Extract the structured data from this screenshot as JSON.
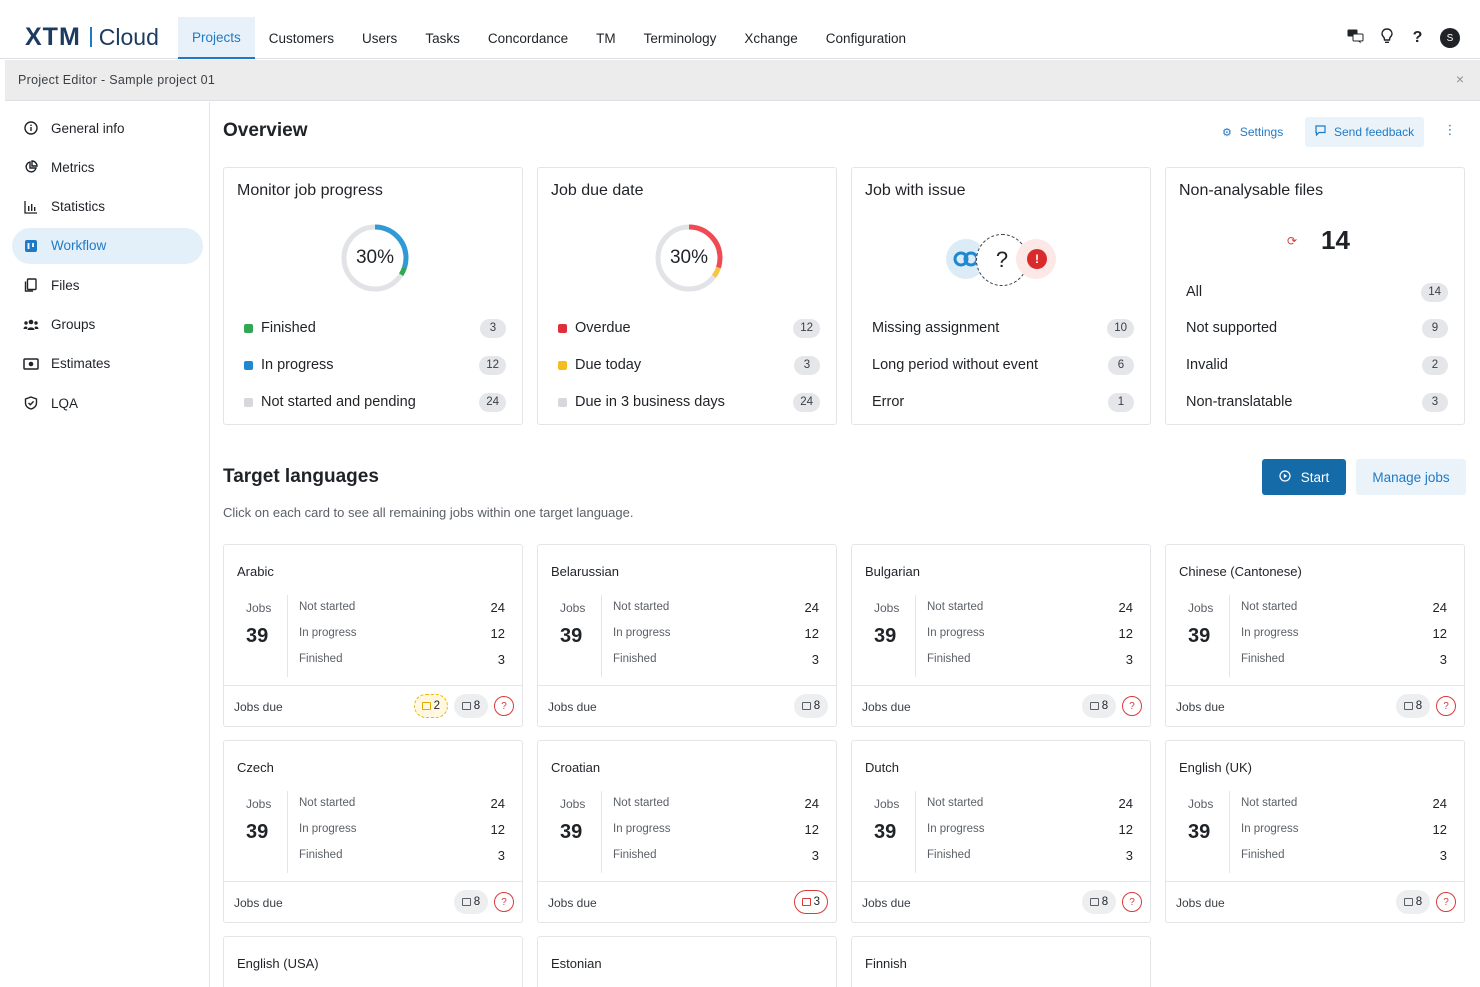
{
  "app": {
    "logo_brand": "XTM",
    "logo_product": "Cloud"
  },
  "nav": {
    "items": [
      {
        "label": "Projects",
        "active": true
      },
      {
        "label": "Customers",
        "active": false
      },
      {
        "label": "Users",
        "active": false
      },
      {
        "label": "Tasks",
        "active": false
      },
      {
        "label": "Concordance",
        "active": false
      },
      {
        "label": "TM",
        "active": false
      },
      {
        "label": "Terminology",
        "active": false
      },
      {
        "label": "Xchange",
        "active": false
      },
      {
        "label": "Configuration",
        "active": false
      }
    ],
    "icons": [
      "chat-translate-icon",
      "lightbulb-icon",
      "help-icon"
    ],
    "avatar_initial": "S"
  },
  "subheader": {
    "title": "Project Editor - Sample project 01",
    "close": "×"
  },
  "sidebar": {
    "items": [
      {
        "label": "General info",
        "icon": "info-icon",
        "active": false
      },
      {
        "label": "Metrics",
        "icon": "pie-chart-icon",
        "active": false
      },
      {
        "label": "Statistics",
        "icon": "bar-chart-icon",
        "active": false
      },
      {
        "label": "Workflow",
        "icon": "workflow-icon",
        "active": true
      },
      {
        "label": "Files",
        "icon": "files-icon",
        "active": false
      },
      {
        "label": "Groups",
        "icon": "groups-icon",
        "active": false
      },
      {
        "label": "Estimates",
        "icon": "estimates-icon",
        "active": false
      },
      {
        "label": "LQA",
        "icon": "shield-check-icon",
        "active": false
      }
    ]
  },
  "overview": {
    "title": "Overview",
    "settings_label": "Settings",
    "feedback_label": "Send feedback",
    "more": "⋮",
    "cards": {
      "progress": {
        "title": "Monitor job progress",
        "percent_label": "30%",
        "segments": [
          {
            "value": 0.3,
            "color": "#2f9bd6"
          },
          {
            "value": 0.04,
            "color": "#2fa84f"
          }
        ],
        "rows": [
          {
            "label": "Finished",
            "count": "3",
            "color": "#2fa84f"
          },
          {
            "label": "In progress",
            "count": "12",
            "color": "#1f88d0"
          },
          {
            "label": "Not started and pending",
            "count": "24",
            "color": "#d6d8db"
          }
        ]
      },
      "due": {
        "title": "Job due date",
        "percent_label": "30%",
        "segments": [
          {
            "value": 0.3,
            "color": "#f04b55"
          },
          {
            "value": 0.05,
            "color": "#f7c544"
          }
        ],
        "rows": [
          {
            "label": "Overdue",
            "count": "12",
            "color": "#e02f3a"
          },
          {
            "label": "Due today",
            "count": "3",
            "color": "#f5bd1f"
          },
          {
            "label": "Due in 3 business days",
            "count": "24",
            "color": "#d6d8db"
          }
        ]
      },
      "issue": {
        "title": "Job with issue",
        "question_mark": "?",
        "exclamation": "!",
        "rows": [
          {
            "label": "Missing assignment",
            "count": "10"
          },
          {
            "label": "Long period without event",
            "count": "6"
          },
          {
            "label": "Error",
            "count": "1"
          }
        ]
      },
      "nonanalysable": {
        "title": "Non-analysable files",
        "total": "14",
        "rows": [
          {
            "label": "All",
            "count": "14"
          },
          {
            "label": "Not supported",
            "count": "9"
          },
          {
            "label": "Invalid",
            "count": "2"
          },
          {
            "label": "Non-translatable",
            "count": "3"
          }
        ]
      }
    }
  },
  "target_languages": {
    "title": "Target languages",
    "subtitle": "Click on each card to see all remaining jobs within one target language.",
    "start_label": "Start",
    "manage_label": "Manage jobs",
    "jobs_label": "Jobs",
    "not_started_label": "Not started",
    "in_progress_label": "In progress",
    "finished_label": "Finished",
    "jobs_due_label": "Jobs due",
    "question": "?",
    "languages": [
      {
        "name": "Arabic",
        "jobs": "39",
        "not_started": "24",
        "in_progress": "12",
        "finished": "3",
        "pills": [
          {
            "type": "warn",
            "value": "2"
          },
          {
            "type": "normal",
            "value": "8"
          }
        ],
        "question": true
      },
      {
        "name": "Belarussian",
        "jobs": "39",
        "not_started": "24",
        "in_progress": "12",
        "finished": "3",
        "pills": [
          {
            "type": "normal",
            "value": "8"
          }
        ],
        "question": false
      },
      {
        "name": "Bulgarian",
        "jobs": "39",
        "not_started": "24",
        "in_progress": "12",
        "finished": "3",
        "pills": [
          {
            "type": "normal",
            "value": "8"
          }
        ],
        "question": true
      },
      {
        "name": "Chinese (Cantonese)",
        "jobs": "39",
        "not_started": "24",
        "in_progress": "12",
        "finished": "3",
        "pills": [
          {
            "type": "normal",
            "value": "8"
          }
        ],
        "question": true
      },
      {
        "name": "Czech",
        "jobs": "39",
        "not_started": "24",
        "in_progress": "12",
        "finished": "3",
        "pills": [
          {
            "type": "normal",
            "value": "8"
          }
        ],
        "question": true
      },
      {
        "name": "Croatian",
        "jobs": "39",
        "not_started": "24",
        "in_progress": "12",
        "finished": "3",
        "pills": [
          {
            "type": "danger",
            "value": "3"
          }
        ],
        "question": false
      },
      {
        "name": "Dutch",
        "jobs": "39",
        "not_started": "24",
        "in_progress": "12",
        "finished": "3",
        "pills": [
          {
            "type": "normal",
            "value": "8"
          }
        ],
        "question": true
      },
      {
        "name": "English (UK)",
        "jobs": "39",
        "not_started": "24",
        "in_progress": "12",
        "finished": "3",
        "pills": [
          {
            "type": "normal",
            "value": "8"
          }
        ],
        "question": true
      },
      {
        "name": "English (USA)"
      },
      {
        "name": "Estonian"
      },
      {
        "name": "Finnish"
      }
    ]
  }
}
